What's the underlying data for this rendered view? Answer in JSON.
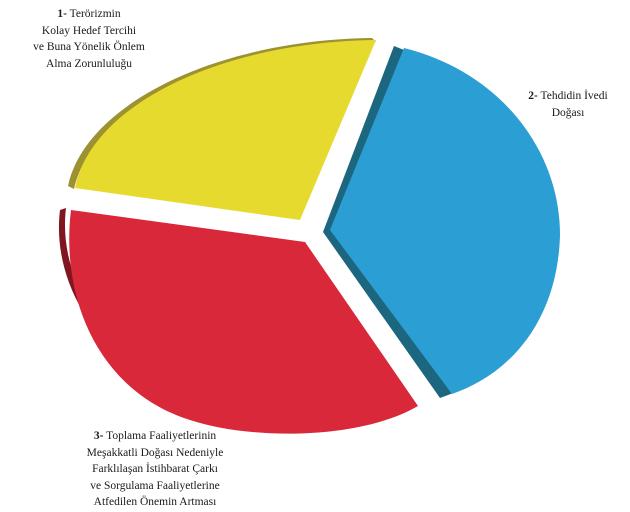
{
  "segments": [
    {
      "number": "1-",
      "lines": [
        "Terörizmin",
        "Kolay Hedef Tercihi",
        "ve Buna Yönelik Önlem",
        "Alma Zorunluluğu"
      ],
      "color": "#e6da2e",
      "shadow_color": "#9c9231"
    },
    {
      "number": "2-",
      "lines": [
        "Tehdidin İvedi",
        "Doğası"
      ],
      "color": "#2b9fd4",
      "shadow_color": "#1d6680"
    },
    {
      "number": "3-",
      "lines": [
        "Toplama Faaliyetlerinin",
        "Meşakkatli Doğası Nedeniyle",
        "Farklılaşan İstihbarat Çarkı",
        "ve Sorgulama Faaliyetlerine",
        "Atfedilen Önemin Artması"
      ],
      "color": "#d8283a",
      "shadow_color": "#7f1620"
    }
  ]
}
